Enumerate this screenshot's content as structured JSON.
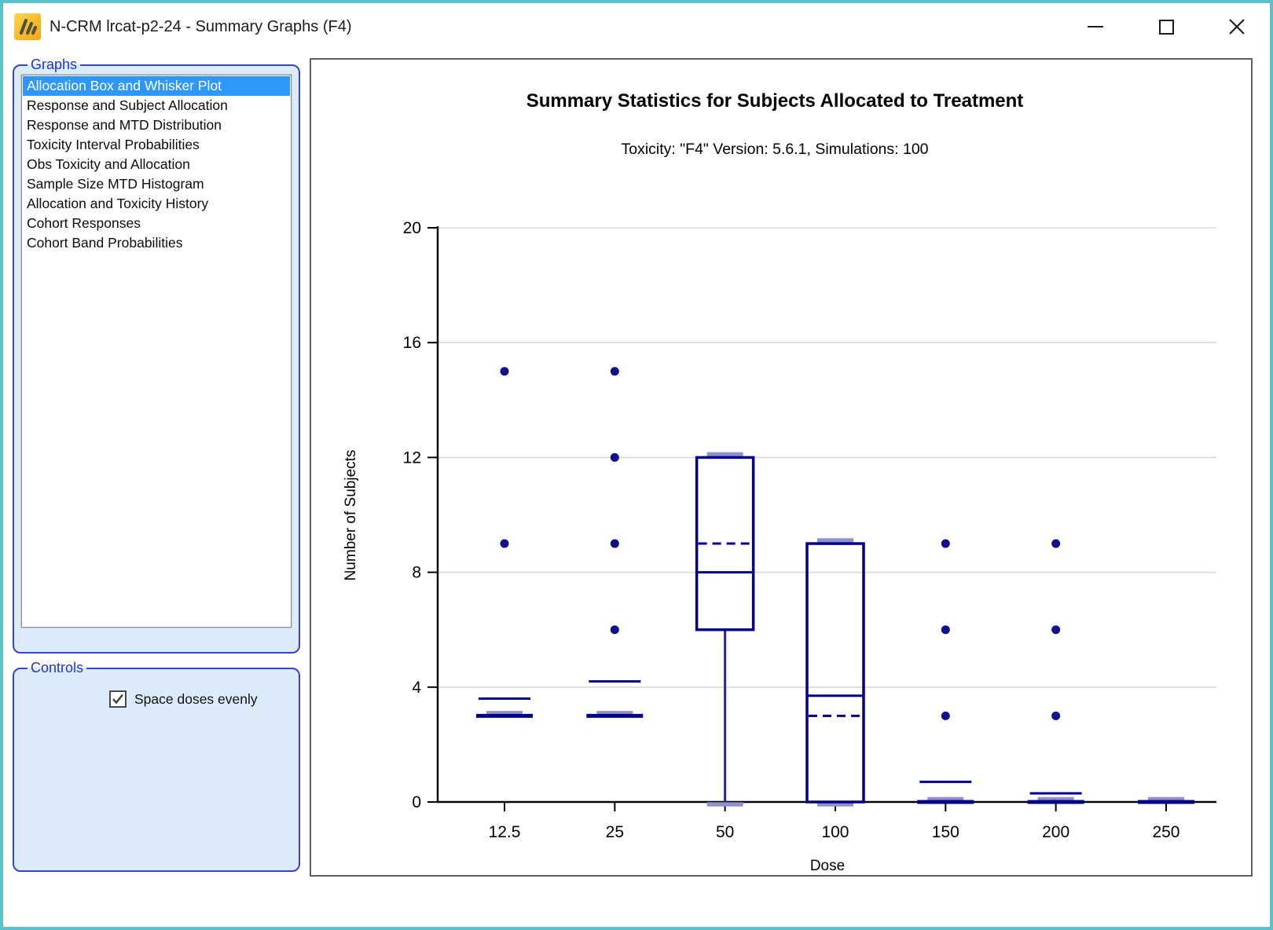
{
  "window": {
    "title": "N-CRM lrcat-p2-24 - Summary Graphs (F4)",
    "icons": {
      "app": "bar-chart-logo",
      "minimize": "minimize-icon",
      "maximize": "maximize-icon",
      "close": "close-icon"
    }
  },
  "sidebar": {
    "graphs_group_label": "Graphs",
    "graph_items": [
      "Allocation Box and Whisker Plot",
      "Response and Subject Allocation",
      "Response and MTD Distribution",
      "Toxicity Interval Probabilities",
      "Obs Toxicity and Allocation",
      "Sample Size MTD Histogram",
      "Allocation and Toxicity History",
      "Cohort Responses",
      "Cohort Band Probabilities"
    ],
    "selected_index": 0,
    "controls_group_label": "Controls",
    "checkbox_label": "Space doses evenly",
    "checkbox_checked": true
  },
  "theme": {
    "window_border": "#5bc1c7",
    "panel_fill": "#dcebfb",
    "group_border": "#3347cc",
    "group_label_color": "#2334cd",
    "selection_color": "#2e97fb"
  },
  "chart_data": {
    "type": "boxplot",
    "title": "Summary Statistics for Subjects Allocated to Treatment",
    "subtitle": "Toxicity: \"F4\" Version: 5.6.1, Simulations: 100",
    "xlabel": "Dose",
    "ylabel": "Number of Subjects",
    "ylim": [
      0,
      20
    ],
    "yticks": [
      0,
      4,
      8,
      12,
      16,
      20
    ],
    "grid": "horizontal",
    "categories": [
      "12.5",
      "25",
      "50",
      "100",
      "150",
      "200",
      "250"
    ],
    "series": [
      {
        "dose": "12.5",
        "q1": 3,
        "median": 3,
        "q3": 3,
        "whisker_low": 3,
        "whisker_high": 3,
        "mean": 3.6,
        "outliers": [
          15,
          9
        ]
      },
      {
        "dose": "25",
        "q1": 3,
        "median": 3,
        "q3": 3,
        "whisker_low": 3,
        "whisker_high": 3,
        "mean": 4.2,
        "outliers": [
          15,
          12,
          9,
          6
        ]
      },
      {
        "dose": "50",
        "q1": 6,
        "median": 8,
        "q3": 12,
        "whisker_low": 0,
        "whisker_high": 12,
        "mean": 9,
        "outliers": []
      },
      {
        "dose": "100",
        "q1": 0,
        "median": 3.7,
        "q3": 9,
        "whisker_low": 0,
        "whisker_high": 9,
        "mean": 3,
        "outliers": []
      },
      {
        "dose": "150",
        "q1": 0,
        "median": 0,
        "q3": 0,
        "whisker_low": 0,
        "whisker_high": 0,
        "mean": 0.7,
        "outliers": [
          9,
          6,
          3
        ]
      },
      {
        "dose": "200",
        "q1": 0,
        "median": 0,
        "q3": 0,
        "whisker_low": 0,
        "whisker_high": 0,
        "mean": 0.3,
        "outliers": [
          9,
          6,
          3
        ]
      },
      {
        "dose": "250",
        "q1": 0,
        "median": 0,
        "q3": 0,
        "whisker_low": 0,
        "whisker_high": 0,
        "mean": 0,
        "outliers": []
      }
    ],
    "colors": {
      "box": "#00008b",
      "whisker": "#2323a6",
      "whisker_cap": "#9090cc",
      "outlier": "#10108c",
      "gridline": "#d9d9d9",
      "axis": "#000000"
    }
  }
}
